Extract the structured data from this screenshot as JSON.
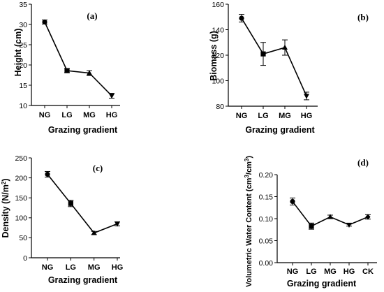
{
  "chart_data": [
    {
      "type": "line",
      "title": "(a)",
      "xlabel": "Grazing gradient",
      "ylabel": "Height (cm)",
      "ylabel_sup": "",
      "ylabel_tail": "",
      "categories": [
        "NG",
        "LG",
        "MG",
        "HG"
      ],
      "values": [
        30.6,
        18.6,
        18.0,
        12.4
      ],
      "errors": [
        0.5,
        0.5,
        0.6,
        0.6
      ],
      "markers": [
        "circle",
        "square",
        "triangle-up",
        "triangle-down"
      ],
      "ylim": [
        10,
        35
      ],
      "yticks": [
        10,
        15,
        20,
        25,
        30,
        35
      ],
      "ytick_labels": [
        "10",
        "15",
        "20",
        "25",
        "30",
        "35"
      ],
      "grid": false
    },
    {
      "type": "line",
      "title": "(b)",
      "xlabel": "Grazing gradient",
      "ylabel": "Biomass (g)",
      "ylabel_sup": "",
      "ylabel_tail": "",
      "categories": [
        "NG",
        "LG",
        "MG",
        "HG"
      ],
      "values": [
        149,
        121,
        126,
        88
      ],
      "errors": [
        3,
        9,
        6,
        3
      ],
      "markers": [
        "circle",
        "square",
        "triangle-up",
        "triangle-down"
      ],
      "ylim": [
        80,
        160
      ],
      "yticks": [
        80,
        100,
        120,
        140,
        160
      ],
      "ytick_labels": [
        "80",
        "100",
        "120",
        "140",
        "160"
      ],
      "grid": false
    },
    {
      "type": "line",
      "title": "(c)",
      "xlabel": "Grazing gradient",
      "ylabel": "Density (N/m",
      "ylabel_sup": "2",
      "ylabel_tail": ")",
      "categories": [
        "NG",
        "LG",
        "MG",
        "HG"
      ],
      "values": [
        209,
        136,
        62,
        85
      ],
      "errors": [
        7,
        8,
        4,
        5
      ],
      "markers": [
        "circle",
        "square",
        "triangle-up",
        "triangle-down"
      ],
      "ylim": [
        0,
        250
      ],
      "yticks": [
        0,
        50,
        100,
        150,
        200,
        250
      ],
      "ytick_labels": [
        "0",
        "50",
        "100",
        "150",
        "200",
        "250"
      ],
      "grid": false
    },
    {
      "type": "line",
      "title": "(d)",
      "xlabel": "Grazing gradient",
      "ylabel": "Volumetric Water Content (cm",
      "ylabel_sup": "3",
      "ylabel_mid": "/cm",
      "ylabel_sup2": "3",
      "ylabel_tail": ")",
      "categories": [
        "NG",
        "LG",
        "MG",
        "HG",
        "CK"
      ],
      "values": [
        0.139,
        0.083,
        0.104,
        0.086,
        0.104
      ],
      "errors": [
        0.008,
        0.007,
        0.004,
        0.003,
        0.005
      ],
      "markers": [
        "circle",
        "square",
        "triangle-up",
        "triangle-down",
        "diamond"
      ],
      "ylim": [
        0,
        0.2
      ],
      "yticks": [
        0,
        0.05,
        0.1,
        0.15,
        0.2
      ],
      "ytick_labels": [
        "0.00",
        "0.05",
        "0.10",
        "0.15",
        "0.20"
      ],
      "grid": false
    }
  ]
}
